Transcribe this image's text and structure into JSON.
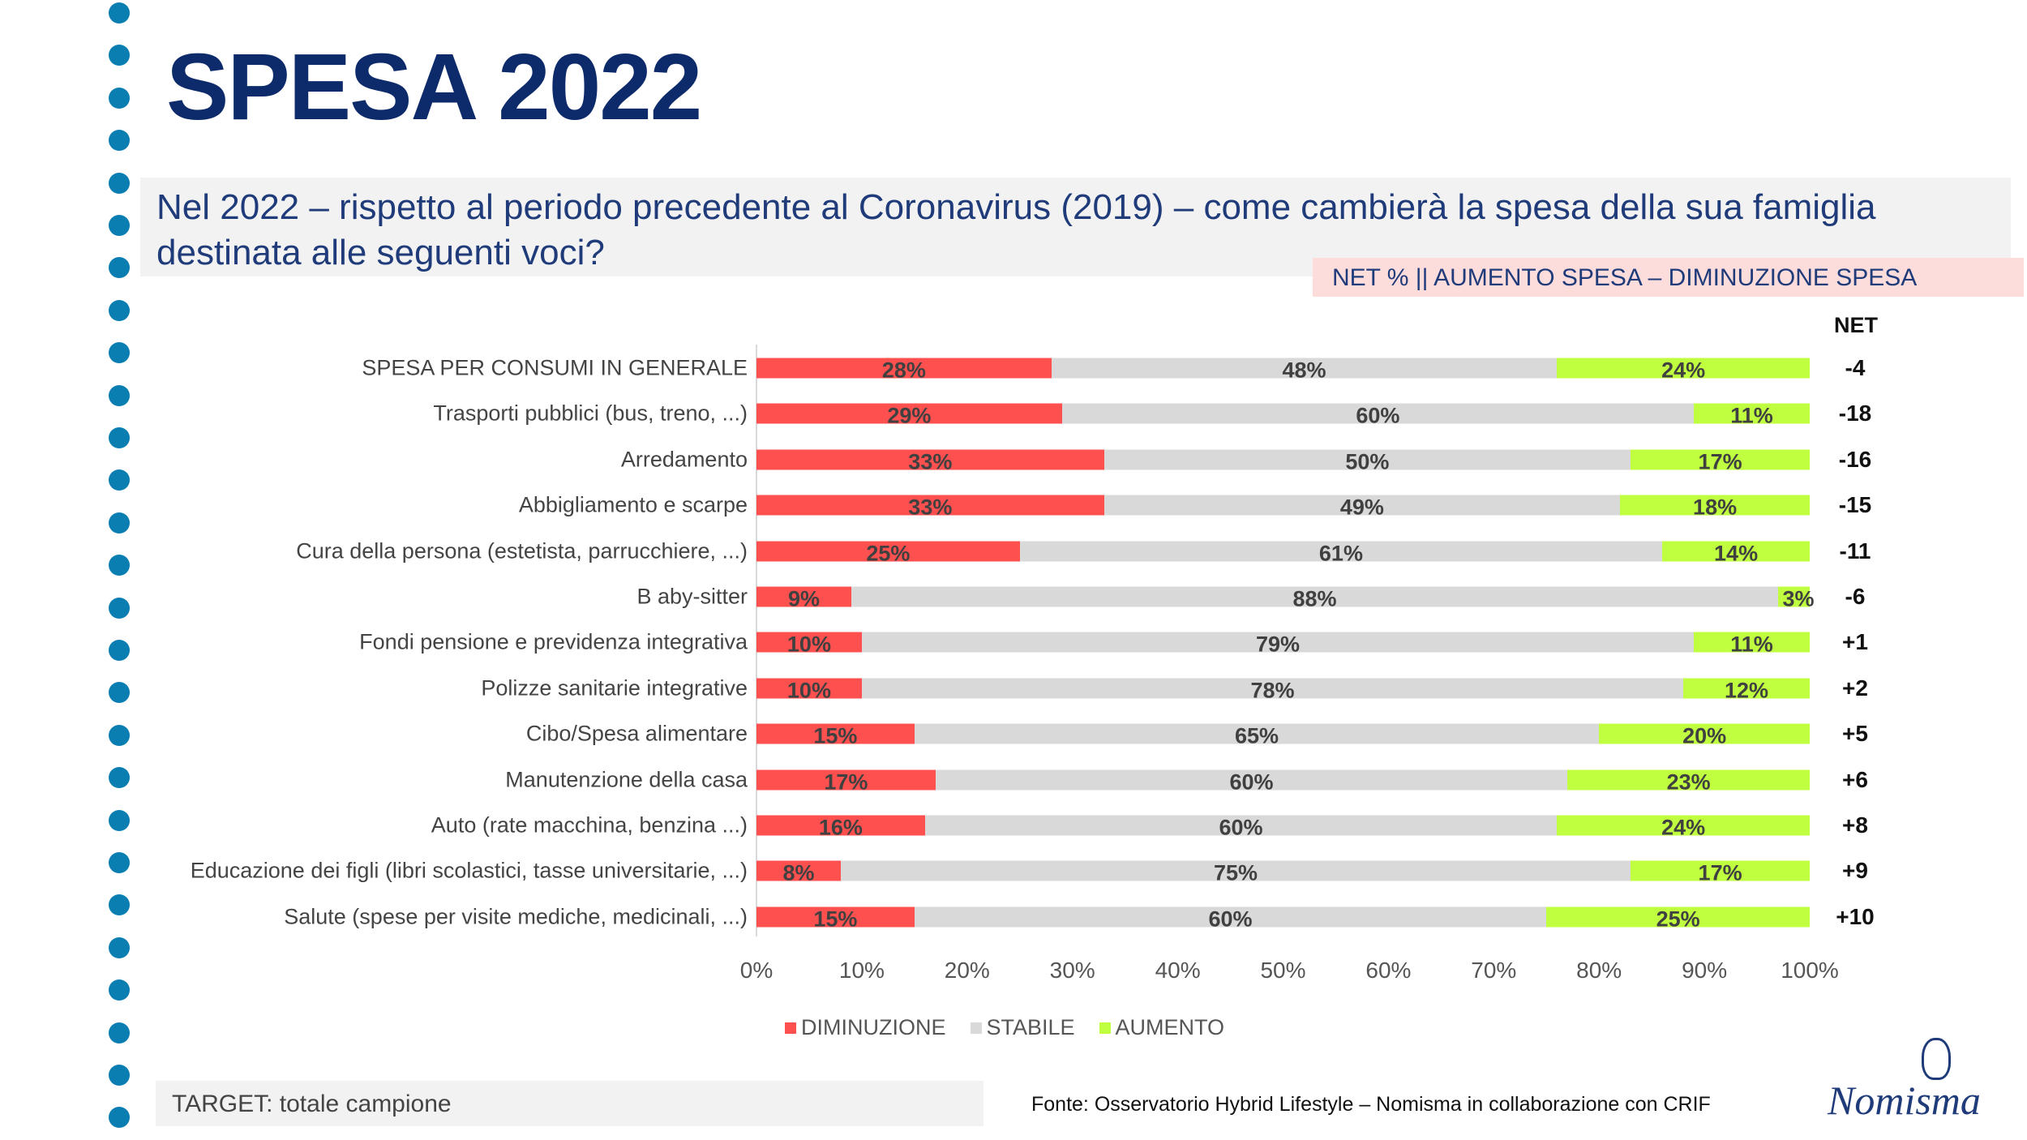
{
  "header": {
    "title": "SPESA 2022",
    "question": "Nel 2022 – rispetto al periodo precedente al Coronavirus (2019)  – come cambierà la spesa della sua famiglia destinata alle seguenti voci?",
    "net_note": "NET % || AUMENTO SPESA – DIMINUZIONE SPESA"
  },
  "chart_data": {
    "type": "bar",
    "orientation": "horizontal-stacked-100",
    "categories": [
      "SPESA PER CONSUMI IN GENERALE",
      "Trasporti pubblici (bus, treno, ...)",
      "Arredamento",
      "Abbigliamento e scarpe",
      "Cura della persona (estetista, parrucchiere, ...)",
      "B aby-sitter",
      "Fondi pensione e previdenza integrativa",
      "Polizze sanitarie integrative",
      "Cibo/Spesa alimentare",
      "Manutenzione della casa",
      "Auto (rate macchina, benzina ...)",
      "Educazione dei figli (libri scolastici, tasse universitarie, ...)",
      "Salute (spese per visite mediche, medicinali, ...)"
    ],
    "series": [
      {
        "name": "DIMINUZIONE",
        "color": "#ff5050",
        "values": [
          28,
          29,
          33,
          33,
          25,
          9,
          10,
          10,
          15,
          17,
          16,
          8,
          15
        ]
      },
      {
        "name": "STABILE",
        "color": "#d9d9d9",
        "values": [
          48,
          60,
          50,
          49,
          61,
          88,
          79,
          78,
          65,
          60,
          60,
          75,
          60
        ]
      },
      {
        "name": "AUMENTO",
        "color": "#bfff3f",
        "values": [
          24,
          11,
          17,
          18,
          14,
          3,
          11,
          12,
          20,
          23,
          24,
          17,
          25
        ]
      }
    ],
    "net_header": "NET",
    "net": [
      "-4",
      "-18",
      "-16",
      "-15",
      "-11",
      "-6",
      "+1",
      "+2",
      "+5",
      "+6",
      "+8",
      "+9",
      "+10"
    ],
    "xlim": [
      0,
      100
    ],
    "xticks": [
      "0%",
      "10%",
      "20%",
      "30%",
      "40%",
      "50%",
      "60%",
      "70%",
      "80%",
      "90%",
      "100%"
    ],
    "legend_position": "bottom"
  },
  "footer": {
    "target": "TARGET: totale campione",
    "source": "Fonte: Osservatorio Hybrid Lifestyle – Nomisma in collaborazione con CRIF",
    "logo": "Nomisma"
  }
}
